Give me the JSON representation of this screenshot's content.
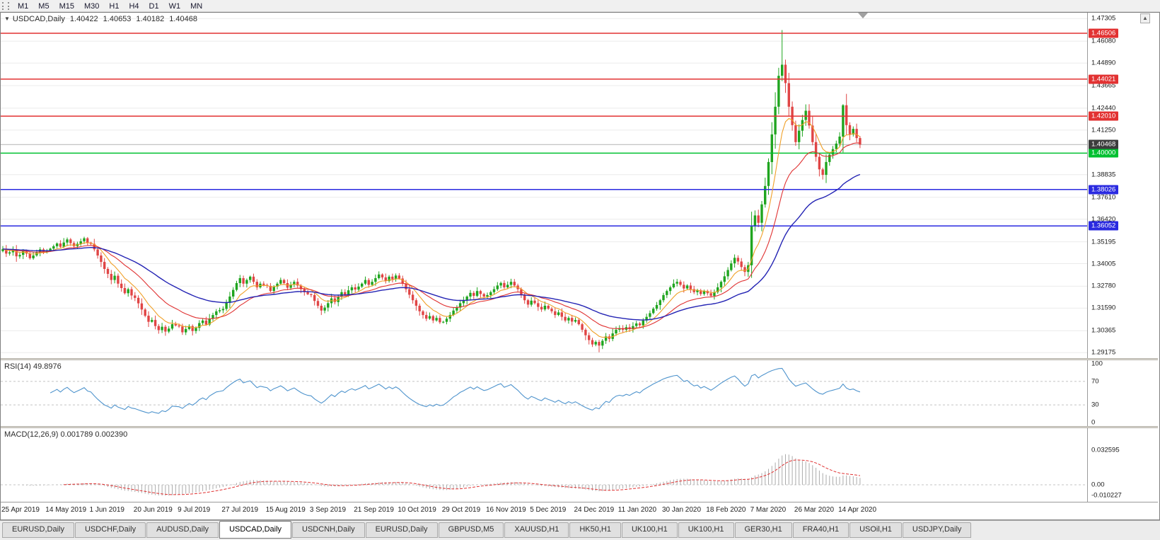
{
  "toolbar": {
    "timeframes": [
      "M1",
      "M5",
      "M15",
      "M30",
      "H1",
      "H4",
      "D1",
      "W1",
      "MN"
    ]
  },
  "chart_header": {
    "symbol": "USDCAD,Daily",
    "open": "1.40422",
    "high": "1.40653",
    "low": "1.40182",
    "close": "1.40468"
  },
  "rsi": {
    "label": "RSI(14) 49.8976",
    "color": "#4f94cd",
    "levels": [
      70,
      30
    ],
    "scale": [
      {
        "text": "100",
        "value": 100
      },
      {
        "text": "70",
        "value": 70
      },
      {
        "text": "30",
        "value": 30
      },
      {
        "text": "0",
        "value": 0
      }
    ]
  },
  "macd": {
    "label": "MACD(12,26,9) 0.001789 0.002390",
    "hist_color": "#ababab",
    "signal_color": "#e03232",
    "scale": [
      {
        "text": "0.032595",
        "value": 0.032595
      },
      {
        "text": "0.00",
        "value": 0
      },
      {
        "text": "-0.010227",
        "value": -0.010227
      }
    ]
  },
  "tabs": {
    "active_index": 3,
    "items": [
      "EURUSD,Daily",
      "USDCHF,Daily",
      "AUDUSD,Daily",
      "USDCAD,Daily",
      "USDCNH,Daily",
      "EURUSD,Daily",
      "GBPUSD,M5",
      "XAUUSD,H1",
      "HK50,H1",
      "UK100,H1",
      "UK100,H1",
      "GER30,H1",
      "FRA40,H1",
      "USOil,H1",
      "USDJPY,Daily"
    ],
    "scroll_up_arrow": "▲"
  },
  "chart_data": {
    "type": "candlestick",
    "symbol": "USDCAD",
    "timeframe": "Daily",
    "ylim": [
      1.2888,
      1.4762
    ],
    "y_ticks": [
      "1.47305",
      "1.46080",
      "1.44890",
      "1.43665",
      "1.42440",
      "1.41250",
      "1.38835",
      "1.37610",
      "1.36420",
      "1.35195",
      "1.34005",
      "1.32780",
      "1.31590",
      "1.30365",
      "1.29175"
    ],
    "x_ticks": [
      "25 Apr 2019",
      "14 May 2019",
      "1 Jun 2019",
      "20 Jun 2019",
      "9 Jul 2019",
      "27 Jul 2019",
      "15 Aug 2019",
      "3 Sep 2019",
      "21 Sep 2019",
      "10 Oct 2019",
      "29 Oct 2019",
      "16 Nov 2019",
      "5 Dec 2019",
      "24 Dec 2019",
      "11 Jan 2020",
      "30 Jan 2020",
      "18 Feb 2020",
      "7 Mar 2020",
      "26 Mar 2020",
      "14 Apr 2020"
    ],
    "bars_per_tick": 13,
    "horizontal_lines": [
      {
        "price": 1.46506,
        "label": "1.46506",
        "color": "#e23232"
      },
      {
        "price": 1.44021,
        "label": "1.44021",
        "color": "#e23232"
      },
      {
        "price": 1.4201,
        "label": "1.42010",
        "color": "#e23232"
      },
      {
        "price": 1.4,
        "label": "1.40000",
        "color": "#00c030"
      },
      {
        "price": 1.38026,
        "label": "1.38026",
        "color": "#2a2ae0"
      },
      {
        "price": 1.36052,
        "label": "1.36052",
        "color": "#2a2ae0"
      }
    ],
    "last_price": {
      "price": 1.40468,
      "label": "1.40468",
      "badge_color": "#3c3c3c",
      "line_color": "#b4b4b4"
    },
    "candle_colors": {
      "up": "#1fa51f",
      "down": "#e04545"
    },
    "moving_averages": [
      {
        "period": 8,
        "color": "#f0a028"
      },
      {
        "period": 20,
        "color": "#e03232"
      },
      {
        "period": 45,
        "color": "#2424b4"
      }
    ],
    "closes": [
      1.348,
      1.3455,
      1.3462,
      1.3475,
      1.344,
      1.3448,
      1.347,
      1.3455,
      1.343,
      1.3445,
      1.346,
      1.3478,
      1.3465,
      1.347,
      1.3482,
      1.3495,
      1.351,
      1.3492,
      1.3515,
      1.3532,
      1.3512,
      1.3495,
      1.3508,
      1.3522,
      1.3538,
      1.3515,
      1.3508,
      1.3478,
      1.3445,
      1.341,
      1.3372,
      1.3345,
      1.3312,
      1.3335,
      1.3292,
      1.3268,
      1.324,
      1.3262,
      1.3228,
      1.3215,
      1.3185,
      1.3152,
      1.3118,
      1.3085,
      1.3095,
      1.3062,
      1.304,
      1.3058,
      1.3032,
      1.3048,
      1.3072,
      1.3065,
      1.306,
      1.3028,
      1.3046,
      1.3062,
      1.3035,
      1.3052,
      1.3078,
      1.3092,
      1.307,
      1.3102,
      1.3122,
      1.3142,
      1.3148,
      1.3155,
      1.3188,
      1.3222,
      1.3258,
      1.3295,
      1.3322,
      1.3292,
      1.3312,
      1.333,
      1.3302,
      1.3272,
      1.3292,
      1.3285,
      1.328,
      1.3252,
      1.3276,
      1.3292,
      1.3312,
      1.3295,
      1.327,
      1.3286,
      1.3302,
      1.3282,
      1.3262,
      1.3246,
      1.3235,
      1.323,
      1.3198,
      1.3172,
      1.3146,
      1.3162,
      1.3186,
      1.3212,
      1.3192,
      1.3222,
      1.3246,
      1.3232,
      1.3256,
      1.3272,
      1.326,
      1.3276,
      1.3292,
      1.3312,
      1.3286,
      1.3302,
      1.3322,
      1.3342,
      1.3326,
      1.3306,
      1.333,
      1.3316,
      1.3336,
      1.332,
      1.3292,
      1.3262,
      1.3232,
      1.3202,
      1.3172,
      1.3142,
      1.3122,
      1.3102,
      1.3116,
      1.3092,
      1.3106,
      1.3082,
      1.3085,
      1.3102,
      1.3122,
      1.3146,
      1.3162,
      1.3186,
      1.3202,
      1.3222,
      1.3242,
      1.3226,
      1.3252,
      1.3236,
      1.3222,
      1.323,
      1.3246,
      1.3262,
      1.3282,
      1.3296,
      1.3272,
      1.3286,
      1.3302,
      1.3282,
      1.3262,
      1.3232,
      1.3202,
      1.3178,
      1.32,
      1.3186,
      1.3166,
      1.3152,
      1.3172,
      1.3156,
      1.3142,
      1.3122,
      1.3136,
      1.3112,
      1.3092,
      1.3106,
      1.3086,
      1.3095,
      1.3072,
      1.3042,
      1.3012,
      1.2986,
      1.2962,
      1.2976,
      1.2956,
      1.2982,
      1.3006,
      1.2992,
      1.3022,
      1.3042,
      1.305,
      1.3042,
      1.3056,
      1.3046,
      1.3062,
      1.3076,
      1.3066,
      1.3092,
      1.3112,
      1.3132,
      1.3156,
      1.3176,
      1.3202,
      1.323,
      1.3252,
      1.3272,
      1.3292,
      1.3302,
      1.3286,
      1.3266,
      1.3282,
      1.3262,
      1.3246,
      1.3256,
      1.3236,
      1.3252,
      1.324,
      1.3226,
      1.3246,
      1.3272,
      1.3302,
      1.3332,
      1.3366,
      1.3402,
      1.3432,
      1.3412,
      1.3382,
      1.3356,
      1.3392,
      1.3602,
      1.3662,
      1.3622,
      1.3722,
      1.3822,
      1.3952,
      1.4102,
      1.4252,
      1.442,
      1.448,
      1.438,
      1.4252,
      1.4152,
      1.406,
      1.4122,
      1.418,
      1.423,
      1.415,
      1.406,
      1.398,
      1.3912,
      1.3882,
      1.3952,
      1.3992,
      1.4022,
      1.4052,
      1.409,
      1.426,
      1.4152,
      1.4102,
      1.4132,
      1.4082,
      1.40468
    ],
    "wick_overrides": {
      "230": {
        "high": 1.4668
      },
      "176": {
        "low": 1.292
      },
      "248": {
        "high": 1.4266
      }
    }
  }
}
